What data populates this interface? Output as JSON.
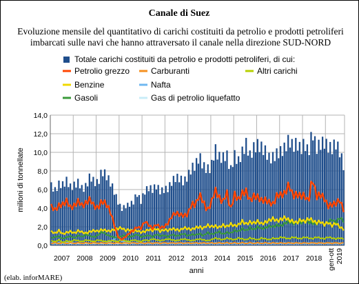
{
  "chart_data": {
    "type": "bar+line",
    "title": "Canale di Suez",
    "subtitle": [
      "Evoluzione mensile del quantitativo di carichi costituiti da petrolio e prodotti petroliferi",
      "imbarcati sulle navi che hanno attraversato il canale nella direzione SUD-NORD"
    ],
    "ylabel": "milioni di tonnellate",
    "xlabel": "anni",
    "ylim": [
      0,
      14
    ],
    "yticks": [
      "0,0",
      "2,0",
      "4,0",
      "6,0",
      "8,0",
      "10,0",
      "12,0",
      "14,0"
    ],
    "year_labels": [
      "2007",
      "2008",
      "2009",
      "2010",
      "2011",
      "2012",
      "2013",
      "2014",
      "2015",
      "2016",
      "2017",
      "2018"
    ],
    "last_label": [
      "gen-ott",
      "2019"
    ],
    "credit": "(elab. inforMARE)",
    "grid": true,
    "legend_position": "top",
    "series": [
      {
        "name": "Totale carichi costituiti da petrolio e prodotti petroliferi, di cui:",
        "kind": "bar",
        "color": "#1f4e8c",
        "anchors": [
          6.4,
          5.9,
          6.6,
          6.5,
          7.0,
          6.2,
          6.5,
          6.8,
          6.0,
          6.4,
          7.5,
          6.8,
          6.7,
          8.0,
          7.6,
          6.9,
          6.0,
          4.8,
          3.9,
          4.2,
          4.4,
          4.6,
          5.6,
          4.7,
          5.8,
          6.2,
          6.0,
          6.4,
          5.8,
          6.0,
          6.1,
          6.9,
          7.3,
          7.2,
          6.8,
          7.4,
          8.3,
          8.6,
          9.6,
          8.5,
          8.2,
          8.3,
          10.4,
          9.5,
          9.4,
          9.8,
          8.0,
          9.7,
          9.0,
          10.0,
          10.9,
          9.6,
          10.5,
          10.8,
          10.5,
          10.1,
          9.3,
          9.5,
          9.9,
          10.1,
          10.5,
          11.4,
          10.6,
          11.0,
          10.3,
          11.0,
          9.9,
          12.3,
          10.4,
          10.9,
          11.1,
          10.6,
          10.4,
          11.0,
          10.1,
          8.6
        ]
      },
      {
        "name": "Petrolio grezzo",
        "kind": "line",
        "color": "#ff4500",
        "anchors": [
          4.2,
          3.8,
          4.3,
          4.4,
          4.8,
          4.0,
          4.3,
          4.8,
          4.2,
          4.6,
          5.0,
          4.2,
          4.0,
          4.8,
          4.5,
          3.8,
          2.5,
          1.0,
          0.6,
          0.9,
          1.3,
          1.6,
          2.0,
          1.8,
          2.6,
          2.2,
          1.8,
          2.3,
          1.9,
          2.0,
          2.4,
          3.2,
          3.5,
          3.3,
          3.2,
          3.3,
          4.5,
          4.3,
          5.5,
          4.7,
          3.7,
          4.5,
          6.0,
          5.2,
          4.6,
          5.8,
          3.8,
          5.5,
          4.9,
          5.6,
          5.8,
          4.8,
          5.3,
          5.2,
          4.8,
          4.9,
          4.6,
          4.4,
          5.5,
          5.4,
          5.6,
          6.6,
          5.3,
          5.5,
          5.3,
          5.4,
          4.6,
          7.4,
          5.2,
          5.5,
          5.1,
          4.2,
          4.4,
          4.5,
          4.9,
          3.8
        ]
      },
      {
        "name": "Carburanti",
        "kind": "line",
        "color": "#f59020",
        "anchors": [
          0.2,
          0.3,
          0.2,
          0.3,
          0.2,
          0.3,
          0.2,
          0.3,
          0.2,
          0.3,
          0.2,
          0.3,
          0.2,
          0.3,
          0.2,
          0.3,
          0.2,
          0.3,
          0.2,
          0.3,
          0.2,
          0.3,
          0.2,
          0.3,
          0.2,
          0.3,
          0.2,
          0.3,
          0.2,
          0.3,
          0.2,
          0.3,
          0.2,
          0.3,
          0.2,
          0.3,
          0.2,
          0.3,
          0.2,
          0.3,
          0.2,
          0.3,
          0.2,
          0.3,
          0.2,
          0.3,
          0.2,
          0.3,
          0.2,
          0.3,
          0.2,
          0.3,
          0.2,
          0.3,
          0.2,
          0.3,
          0.2,
          0.3,
          0.2,
          0.3,
          0.2,
          0.3,
          0.2,
          0.3,
          0.2,
          0.3,
          0.2,
          0.3,
          0.2,
          0.3,
          0.2,
          0.3,
          0.2,
          0.3,
          0.2,
          0.3
        ]
      },
      {
        "name": "Altri carichi",
        "kind": "line",
        "color": "#b6d000",
        "anchors": [
          0.5,
          0.4,
          0.6,
          0.3,
          0.5,
          0.4,
          0.6,
          0.5,
          0.4,
          0.6,
          0.5,
          0.4,
          0.6,
          0.5,
          0.4,
          0.5,
          0.5,
          0.4,
          0.6,
          0.5,
          0.4,
          0.6,
          0.5,
          0.4,
          0.6,
          0.5,
          0.7,
          0.6,
          0.5,
          0.6,
          0.7,
          0.6,
          0.5,
          0.6,
          0.7,
          0.6,
          0.5,
          0.6,
          0.7,
          0.6,
          0.5,
          0.6,
          0.8,
          0.7,
          0.6,
          0.8,
          0.7,
          0.6,
          0.8,
          0.7,
          0.6,
          0.8,
          0.7,
          0.6,
          0.8,
          0.7,
          0.6,
          0.8,
          0.7,
          0.9,
          0.8,
          0.7,
          0.9,
          0.8,
          0.7,
          0.9,
          0.8,
          0.7,
          0.9,
          0.8,
          0.7,
          0.9,
          0.8,
          0.7,
          0.8,
          0.7
        ]
      },
      {
        "name": "Benzine",
        "kind": "line",
        "color": "#f0d800",
        "anchors": [
          1.5,
          1.3,
          1.6,
          1.2,
          1.4,
          1.5,
          1.3,
          1.6,
          1.4,
          1.3,
          1.5,
          1.6,
          1.5,
          1.7,
          1.6,
          1.5,
          1.7,
          1.8,
          1.9,
          1.6,
          1.7,
          1.5,
          1.6,
          1.4,
          1.5,
          1.7,
          1.6,
          1.8,
          1.5,
          1.7,
          1.6,
          1.8,
          1.7,
          1.6,
          1.9,
          1.8,
          1.7,
          1.9,
          2.0,
          1.8,
          2.2,
          2.0,
          2.1,
          1.9,
          2.2,
          2.0,
          2.3,
          2.1,
          2.2,
          2.6,
          2.3,
          2.5,
          2.4,
          2.6,
          2.3,
          2.5,
          2.7,
          2.9,
          2.6,
          2.8,
          3.0,
          2.7,
          2.6,
          2.4,
          2.8,
          2.5,
          2.9,
          2.7,
          2.4,
          2.6,
          2.2,
          2.5,
          2.1,
          2.4,
          2.0,
          1.7
        ]
      },
      {
        "name": "Nafta",
        "kind": "line",
        "color": "#6fb8f0",
        "anchors": [
          0.3,
          0.2,
          0.3,
          0.2,
          0.3,
          0.4,
          0.2,
          0.3,
          0.2,
          0.3,
          0.2,
          0.3,
          0.2,
          0.3,
          0.2,
          0.4,
          0.6,
          1.0,
          0.5,
          0.3,
          0.4,
          0.2,
          0.3,
          0.2,
          0.3,
          0.2,
          0.3,
          0.2,
          0.3,
          0.2,
          0.3,
          0.2,
          0.3,
          0.2,
          0.3,
          0.2,
          0.3,
          0.2,
          0.3,
          0.2,
          0.3,
          0.2,
          0.3,
          0.2,
          0.3,
          0.2,
          0.3,
          0.2,
          0.3,
          0.2,
          0.3,
          0.2,
          0.3,
          0.2,
          0.3,
          0.2,
          0.3,
          0.2,
          0.3,
          0.2,
          0.3,
          0.2,
          0.3,
          0.2,
          0.3,
          0.2,
          0.3,
          0.2,
          0.3,
          0.2,
          0.3,
          0.2,
          0.3,
          0.2,
          0.3,
          0.2
        ]
      },
      {
        "name": "Gasoli",
        "kind": "line",
        "color": "#3a9a3a",
        "anchors": [
          0.8,
          0.9,
          1.0,
          0.7,
          0.9,
          1.0,
          0.8,
          1.1,
          0.9,
          1.2,
          1.0,
          0.9,
          1.1,
          1.5,
          1.2,
          1.0,
          0.9,
          0.8,
          1.0,
          1.1,
          0.9,
          1.0,
          1.2,
          0.9,
          1.0,
          1.1,
          0.9,
          1.2,
          1.0,
          1.1,
          0.9,
          1.2,
          1.0,
          1.1,
          1.3,
          1.0,
          1.2,
          1.1,
          1.3,
          1.0,
          1.4,
          1.2,
          1.3,
          1.5,
          1.2,
          1.4,
          1.3,
          1.6,
          1.5,
          1.8,
          1.6,
          1.9,
          1.7,
          2.0,
          1.8,
          1.9,
          2.1,
          2.0,
          2.2,
          2.1,
          2.4,
          2.6,
          2.3,
          2.5,
          2.4,
          2.7,
          2.5,
          2.4,
          2.3,
          2.6,
          2.2,
          2.5,
          2.8,
          2.4,
          3.0,
          2.6
        ]
      },
      {
        "name": "Gas di petrolio liquefatto",
        "kind": "line",
        "color": "#c8ecf8",
        "anchors": [
          0.2,
          0.2,
          0.2,
          0.2,
          0.2,
          0.2,
          0.2,
          0.2,
          0.2,
          0.2,
          0.2,
          0.2,
          0.2,
          0.2,
          0.2,
          0.2,
          0.2,
          0.2,
          0.2,
          0.2,
          0.2,
          0.2,
          0.2,
          0.2,
          0.2,
          0.2,
          0.2,
          0.2,
          0.2,
          0.2,
          0.2,
          0.2,
          0.2,
          0.2,
          0.2,
          0.2,
          0.2,
          0.2,
          0.2,
          0.2,
          0.2,
          0.2,
          0.2,
          0.2,
          0.2,
          0.2,
          0.2,
          0.2,
          0.2,
          0.2,
          0.2,
          0.2,
          0.2,
          0.2,
          0.2,
          0.2,
          0.2,
          0.2,
          0.2,
          0.2,
          0.2,
          0.2,
          0.2,
          0.2,
          0.2,
          0.2,
          0.2,
          0.2,
          0.2,
          0.2,
          0.2,
          0.2,
          0.2,
          0.2,
          0.2,
          0.2
        ]
      }
    ]
  }
}
